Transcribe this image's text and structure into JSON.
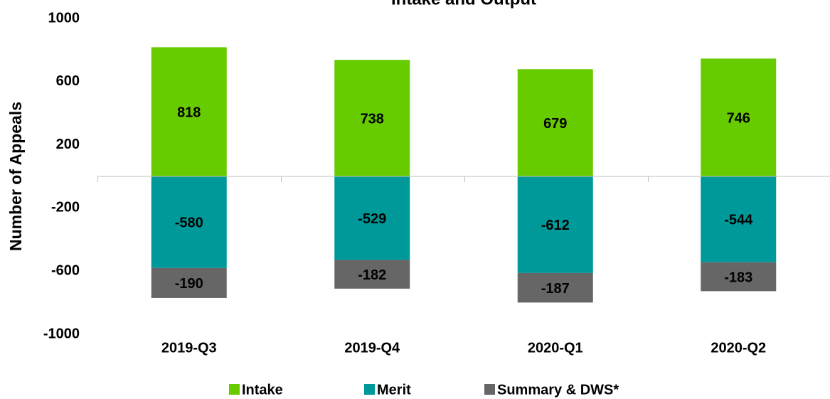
{
  "chart_data": {
    "type": "stacked_bar",
    "title": "Intake and Output",
    "y_axis_label": "Number of Appeals",
    "categories": [
      "2019-Q3",
      "2019-Q4",
      "2020-Q1",
      "2020-Q2"
    ],
    "series": [
      {
        "name": "Intake",
        "color": "#66cc00",
        "label_color": "#404040",
        "values": [
          818,
          738,
          679,
          746
        ]
      },
      {
        "name": "Merit",
        "color": "#009999",
        "label_color": "#ffffff",
        "values": [
          -580,
          -529,
          -612,
          -544
        ]
      },
      {
        "name": "Summary & DWS*",
        "color": "#666666",
        "label_color": "#ffffff",
        "values": [
          -190,
          -182,
          -187,
          -183
        ]
      }
    ],
    "ylim": [
      -1000,
      1000
    ],
    "yticks": [
      -1000,
      -600,
      -200,
      200,
      600,
      1000
    ],
    "grid": false,
    "legend": "bottom"
  }
}
